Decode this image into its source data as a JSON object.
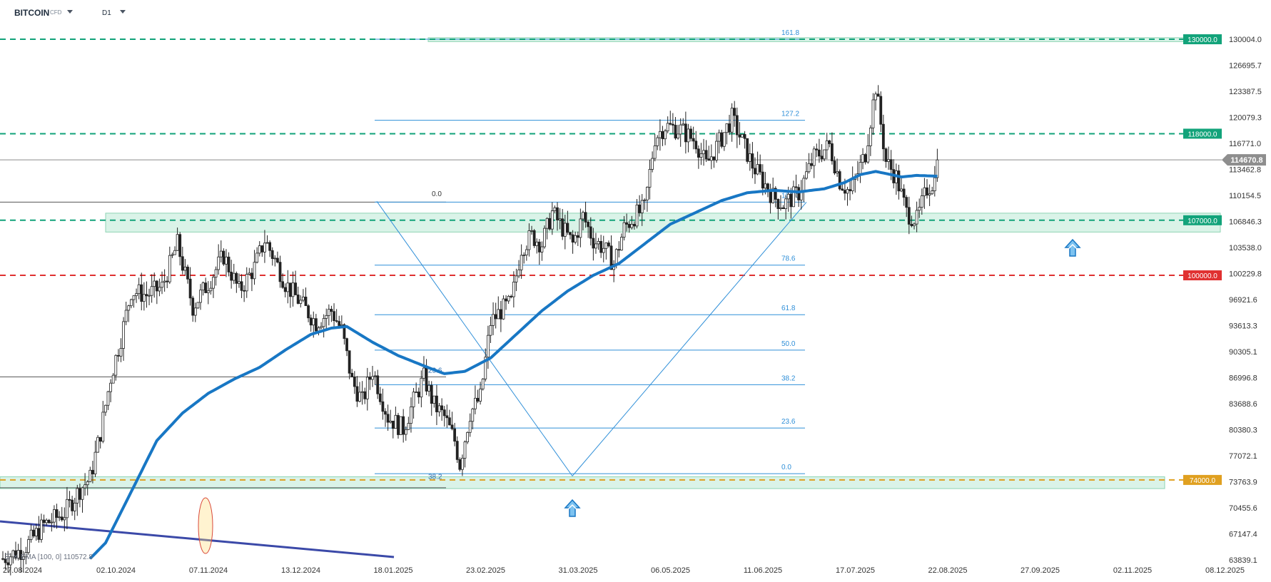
{
  "header": {
    "symbol": "BITCOIN",
    "instrument_type": "CFD",
    "timeframe": "D1"
  },
  "legend": {
    "ema_label": "EMA [100, 0] 110572.8"
  },
  "chart_data": {
    "type": "candlestick",
    "price_axis": {
      "ticks": [
        130004.0,
        126695.7,
        123387.5,
        120079.3,
        116771.0,
        113462.8,
        110154.5,
        106846.3,
        103538.0,
        100229.8,
        96921.6,
        93613.3,
        90305.1,
        86996.8,
        83688.6,
        80380.3,
        77072.1,
        73763.9,
        70455.6,
        67147.4,
        63839.1
      ],
      "range": [
        63839.1,
        130004.0
      ],
      "current_price": 114670.8
    },
    "date_axis": {
      "ticks": [
        "27.08.2024",
        "02.10.2024",
        "07.11.2024",
        "13.12.2024",
        "18.01.2025",
        "23.02.2025",
        "31.03.2025",
        "06.05.2025",
        "11.06.2025",
        "17.07.2025",
        "22.08.2025",
        "27.09.2025",
        "02.11.2025",
        "08.12.2025"
      ]
    },
    "price_lines": [
      {
        "label": "130000.0",
        "value": 130000,
        "style": "dashed",
        "color": "#12a37a"
      },
      {
        "label": "118000.0",
        "value": 118000,
        "style": "dashed",
        "color": "#12a37a"
      },
      {
        "label": "107000.0",
        "value": 107000,
        "style": "dashed",
        "color": "#12a37a"
      },
      {
        "label": "100000.0",
        "value": 100000,
        "style": "dashed",
        "color": "#e03131"
      },
      {
        "label": "74000.0",
        "value": 74000,
        "style": "dashed",
        "color": "#e0a020"
      }
    ],
    "fib_right": {
      "levels": [
        {
          "label": "161.8",
          "value": 130000
        },
        {
          "label": "127.2",
          "value": 119700
        },
        {
          "label": "100.0",
          "value": 109300
        },
        {
          "label": "78.6",
          "value": 101300
        },
        {
          "label": "61.8",
          "value": 95000
        },
        {
          "label": "50.0",
          "value": 90500
        },
        {
          "label": "38.2",
          "value": 86100
        },
        {
          "label": "23.6",
          "value": 80600
        },
        {
          "label": "0.0",
          "value": 74800
        }
      ]
    },
    "fib_left": {
      "levels": [
        {
          "label": "0.0",
          "value": 109500
        },
        {
          "label": "23.6",
          "value": 87100
        },
        {
          "label": "38.2",
          "value": 73600
        }
      ]
    },
    "candles": {
      "waypoints": [
        [
          0,
          64000
        ],
        [
          8,
          65200
        ],
        [
          16,
          68300
        ],
        [
          24,
          69800
        ],
        [
          30,
          72800
        ],
        [
          34,
          74200
        ],
        [
          38,
          80000
        ],
        [
          42,
          87000
        ],
        [
          46,
          92000
        ],
        [
          50,
          98000
        ],
        [
          56,
          97500
        ],
        [
          62,
          98500
        ],
        [
          68,
          104000
        ],
        [
          74,
          96000
        ],
        [
          80,
          99000
        ],
        [
          86,
          102500
        ],
        [
          92,
          98000
        ],
        [
          98,
          101000
        ],
        [
          102,
          104500
        ],
        [
          106,
          102000
        ],
        [
          110,
          99000
        ],
        [
          116,
          96500
        ],
        [
          122,
          94000
        ],
        [
          128,
          95500
        ],
        [
          132,
          93000
        ],
        [
          136,
          86500
        ],
        [
          140,
          84000
        ],
        [
          144,
          88000
        ],
        [
          150,
          82000
        ],
        [
          156,
          80500
        ],
        [
          160,
          84000
        ],
        [
          164,
          87000
        ],
        [
          168,
          83500
        ],
        [
          172,
          82000
        ],
        [
          176,
          79000
        ],
        [
          178,
          76000
        ],
        [
          182,
          82500
        ],
        [
          186,
          84500
        ],
        [
          190,
          94000
        ],
        [
          194,
          95500
        ],
        [
          198,
          96500
        ],
        [
          202,
          103500
        ],
        [
          206,
          105000
        ],
        [
          210,
          104000
        ],
        [
          214,
          108000
        ],
        [
          218,
          106000
        ],
        [
          222,
          104000
        ],
        [
          226,
          107500
        ],
        [
          230,
          104500
        ],
        [
          234,
          103500
        ],
        [
          238,
          101500
        ],
        [
          242,
          106000
        ],
        [
          246,
          107500
        ],
        [
          250,
          108500
        ],
        [
          254,
          117500
        ],
        [
          258,
          119000
        ],
        [
          264,
          118500
        ],
        [
          270,
          117000
        ],
        [
          274,
          114000
        ],
        [
          280,
          117500
        ],
        [
          284,
          120000
        ],
        [
          288,
          117000
        ],
        [
          292,
          114000
        ],
        [
          296,
          112000
        ],
        [
          300,
          110000
        ],
        [
          304,
          109000
        ],
        [
          310,
          110500
        ],
        [
          316,
          115000
        ],
        [
          322,
          116500
        ],
        [
          326,
          112000
        ],
        [
          330,
          110500
        ],
        [
          336,
          115500
        ],
        [
          340,
          124000
        ],
        [
          344,
          114500
        ],
        [
          348,
          112500
        ],
        [
          352,
          108000
        ],
        [
          356,
          107000
        ],
        [
          360,
          111000
        ],
        [
          364,
          112500
        ]
      ]
    },
    "ema": {
      "waypoints": [
        [
          34,
          64000
        ],
        [
          40,
          66000
        ],
        [
          50,
          72500
        ],
        [
          60,
          79000
        ],
        [
          70,
          82500
        ],
        [
          80,
          85000
        ],
        [
          90,
          86800
        ],
        [
          100,
          88300
        ],
        [
          110,
          90500
        ],
        [
          120,
          92500
        ],
        [
          128,
          93300
        ],
        [
          134,
          93500
        ],
        [
          144,
          91500
        ],
        [
          154,
          89800
        ],
        [
          164,
          88500
        ],
        [
          172,
          87500
        ],
        [
          180,
          87800
        ],
        [
          190,
          89500
        ],
        [
          200,
          92500
        ],
        [
          210,
          95500
        ],
        [
          220,
          98000
        ],
        [
          230,
          100000
        ],
        [
          240,
          101500
        ],
        [
          250,
          104000
        ],
        [
          260,
          106500
        ],
        [
          270,
          108000
        ],
        [
          280,
          109500
        ],
        [
          290,
          110500
        ],
        [
          300,
          110800
        ],
        [
          310,
          110600
        ],
        [
          320,
          111000
        ],
        [
          328,
          111800
        ],
        [
          334,
          112800
        ],
        [
          340,
          113200
        ],
        [
          346,
          112800
        ],
        [
          350,
          112500
        ],
        [
          356,
          112700
        ],
        [
          364,
          112600
        ]
      ]
    }
  }
}
